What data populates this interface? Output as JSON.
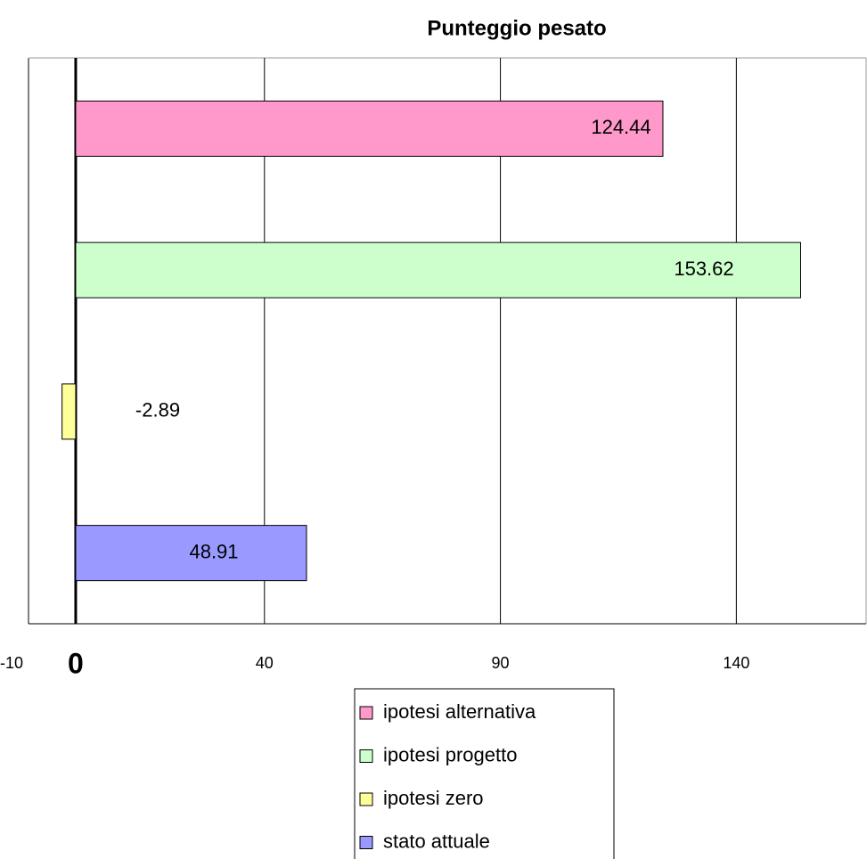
{
  "chart_data": {
    "type": "bar",
    "orientation": "horizontal",
    "title": "Punteggio pesato",
    "series": [
      {
        "name": "ipotesi alternativa",
        "color": "#ff99cc",
        "values": [
          124.44
        ]
      },
      {
        "name": "ipotesi progetto",
        "color": "#ccffcc",
        "values": [
          153.62
        ]
      },
      {
        "name": "ipotesi zero",
        "color": "#ffff99",
        "values": [
          -2.89
        ]
      },
      {
        "name": "stato attuale",
        "color": "#9999ff",
        "values": [
          48.91
        ]
      }
    ],
    "xlim": [
      -10,
      167.5
    ],
    "xticks": [
      -10,
      0,
      40,
      90,
      140
    ],
    "grid": true
  }
}
